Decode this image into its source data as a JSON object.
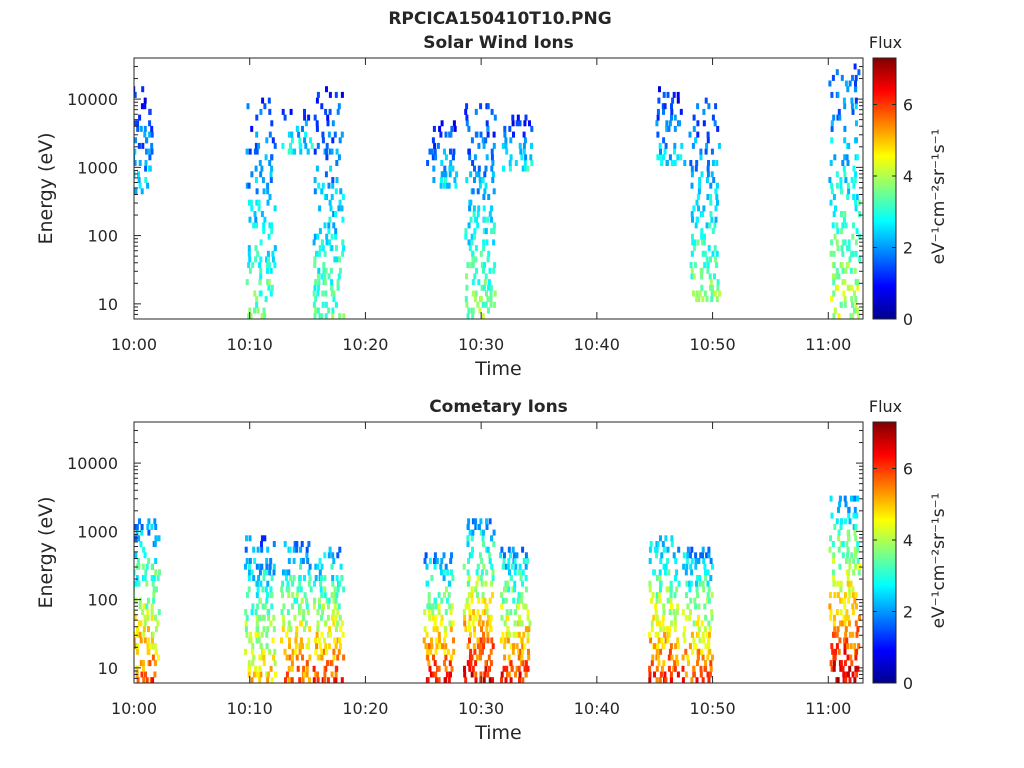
{
  "figure_title": "RPCICA150410T10.PNG",
  "colors": {
    "colormap": [
      "#00008f",
      "#0000ff",
      "#0080ff",
      "#00ffff",
      "#80ff80",
      "#ffff00",
      "#ff8000",
      "#ff0000",
      "#800000"
    ]
  },
  "chart_data": [
    {
      "type": "heatmap",
      "title": "Solar Wind Ions",
      "xlabel": "Time",
      "ylabel": "Energy (eV)",
      "x_ticks": [
        "10:00",
        "10:10",
        "10:20",
        "10:30",
        "10:40",
        "10:50",
        "11:00"
      ],
      "xlim_minutes": [
        0,
        63
      ],
      "y_scale": "log",
      "y_ticks": [
        10,
        100,
        1000,
        10000
      ],
      "ylim": [
        6,
        40000
      ],
      "colorbar": {
        "label": "Flux",
        "units": "eV⁻¹cm⁻²sr⁻¹s⁻¹",
        "ticks": [
          0,
          2,
          4,
          6
        ],
        "range": [
          0,
          7.3
        ]
      },
      "bursts": [
        {
          "minute": 0.3,
          "emin": 400,
          "emax": 16000,
          "flux": 2.2
        },
        {
          "minute": 10.8,
          "emin": 6,
          "emax": 10000,
          "flux": 3.1
        },
        {
          "minute": 14.0,
          "emin": 1500,
          "emax": 9000,
          "flux": 2.6
        },
        {
          "minute": 16.7,
          "emin": 6,
          "emax": 14000,
          "flux": 3.0
        },
        {
          "minute": 26.5,
          "emin": 500,
          "emax": 5000,
          "flux": 2.4
        },
        {
          "minute": 29.8,
          "emin": 6,
          "emax": 8000,
          "flux": 3.2
        },
        {
          "minute": 33.0,
          "emin": 800,
          "emax": 5500,
          "flux": 2.6
        },
        {
          "minute": 46.3,
          "emin": 1000,
          "emax": 15000,
          "flux": 2.3
        },
        {
          "minute": 49.2,
          "emin": 10,
          "emax": 11000,
          "flux": 3.2
        },
        {
          "minute": 61.3,
          "emin": 6,
          "emax": 35000,
          "flux": 3.6
        }
      ]
    },
    {
      "type": "heatmap",
      "title": "Cometary Ions",
      "xlabel": "Time",
      "ylabel": "Energy (eV)",
      "x_ticks": [
        "10:00",
        "10:10",
        "10:20",
        "10:30",
        "10:40",
        "10:50",
        "11:00"
      ],
      "xlim_minutes": [
        0,
        63
      ],
      "y_scale": "log",
      "y_ticks": [
        10,
        100,
        1000,
        10000
      ],
      "ylim": [
        6,
        40000
      ],
      "colorbar": {
        "label": "Flux",
        "units": "eV⁻¹cm⁻²sr⁻¹s⁻¹",
        "ticks": [
          0,
          2,
          4,
          6
        ],
        "range": [
          0,
          7.3
        ]
      },
      "bursts": [
        {
          "minute": 0.8,
          "emin": 6,
          "emax": 1500,
          "flux": 4.6
        },
        {
          "minute": 10.8,
          "emin": 6,
          "emax": 900,
          "flux": 4.0
        },
        {
          "minute": 13.9,
          "emin": 6,
          "emax": 700,
          "flux": 4.6
        },
        {
          "minute": 16.7,
          "emin": 6,
          "emax": 600,
          "flux": 4.8
        },
        {
          "minute": 26.2,
          "emin": 6,
          "emax": 500,
          "flux": 5.0
        },
        {
          "minute": 29.7,
          "emin": 6,
          "emax": 1600,
          "flux": 5.2
        },
        {
          "minute": 32.8,
          "emin": 6,
          "emax": 600,
          "flux": 5.0
        },
        {
          "minute": 45.7,
          "emin": 6,
          "emax": 900,
          "flux": 4.9
        },
        {
          "minute": 48.6,
          "emin": 6,
          "emax": 600,
          "flux": 4.8
        },
        {
          "minute": 61.3,
          "emin": 6,
          "emax": 3500,
          "flux": 5.4
        }
      ]
    }
  ]
}
